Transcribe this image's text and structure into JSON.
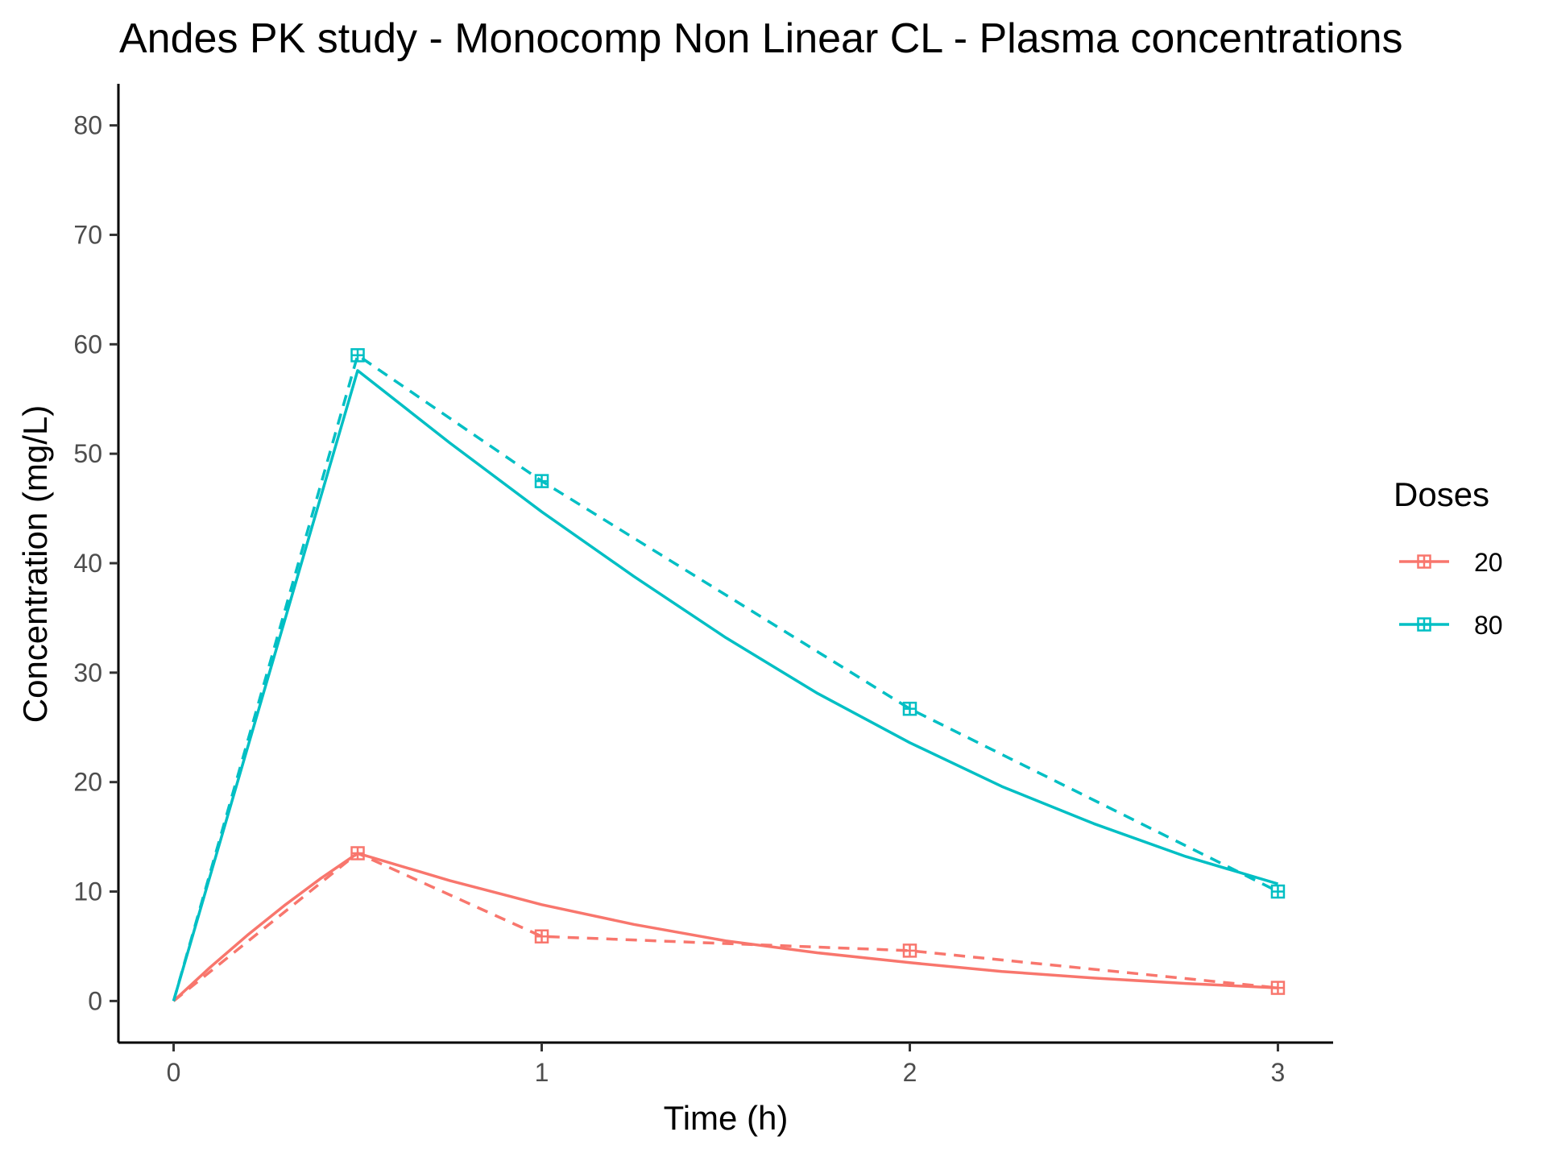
{
  "chart_data": {
    "type": "line",
    "title": "Andes PK study - Monocomp Non Linear CL - Plasma concentrations",
    "xlabel": "Time (h)",
    "ylabel": "Concentration (mg/L)",
    "xlim": [
      -0.15,
      3.15
    ],
    "ylim": [
      -3.8,
      83.8
    ],
    "x_ticks": [
      0,
      1,
      2,
      3
    ],
    "y_ticks": [
      0,
      10,
      20,
      30,
      40,
      50,
      60,
      70,
      80
    ],
    "grid": false,
    "legend": {
      "title": "Doses",
      "position": "right"
    },
    "series": [
      {
        "name": "20",
        "color": "#F8766D",
        "observed": {
          "x": [
            0.5,
            1,
            2,
            3
          ],
          "y": [
            13.5,
            5.9,
            4.6,
            1.2
          ]
        },
        "predicted": {
          "x": [
            0,
            0.1,
            0.2,
            0.3,
            0.4,
            0.5,
            0.75,
            1,
            1.25,
            1.5,
            1.75,
            2,
            2.25,
            2.5,
            2.75,
            3
          ],
          "y": [
            0,
            3.1,
            6.0,
            8.7,
            11.2,
            13.5,
            11.0,
            8.8,
            7.0,
            5.5,
            4.4,
            3.5,
            2.7,
            2.1,
            1.6,
            1.2
          ]
        }
      },
      {
        "name": "80",
        "color": "#00BFC4",
        "observed": {
          "x": [
            0.5,
            1,
            2,
            3
          ],
          "y": [
            59.0,
            47.5,
            26.7,
            10.0
          ]
        },
        "predicted": {
          "x": [
            0,
            0.5,
            0.75,
            1,
            1.25,
            1.5,
            1.75,
            2,
            2.25,
            2.5,
            2.75,
            3
          ],
          "y": [
            0,
            57.6,
            51.0,
            44.7,
            38.8,
            33.2,
            28.1,
            23.6,
            19.6,
            16.2,
            13.2,
            10.7
          ]
        }
      }
    ]
  }
}
